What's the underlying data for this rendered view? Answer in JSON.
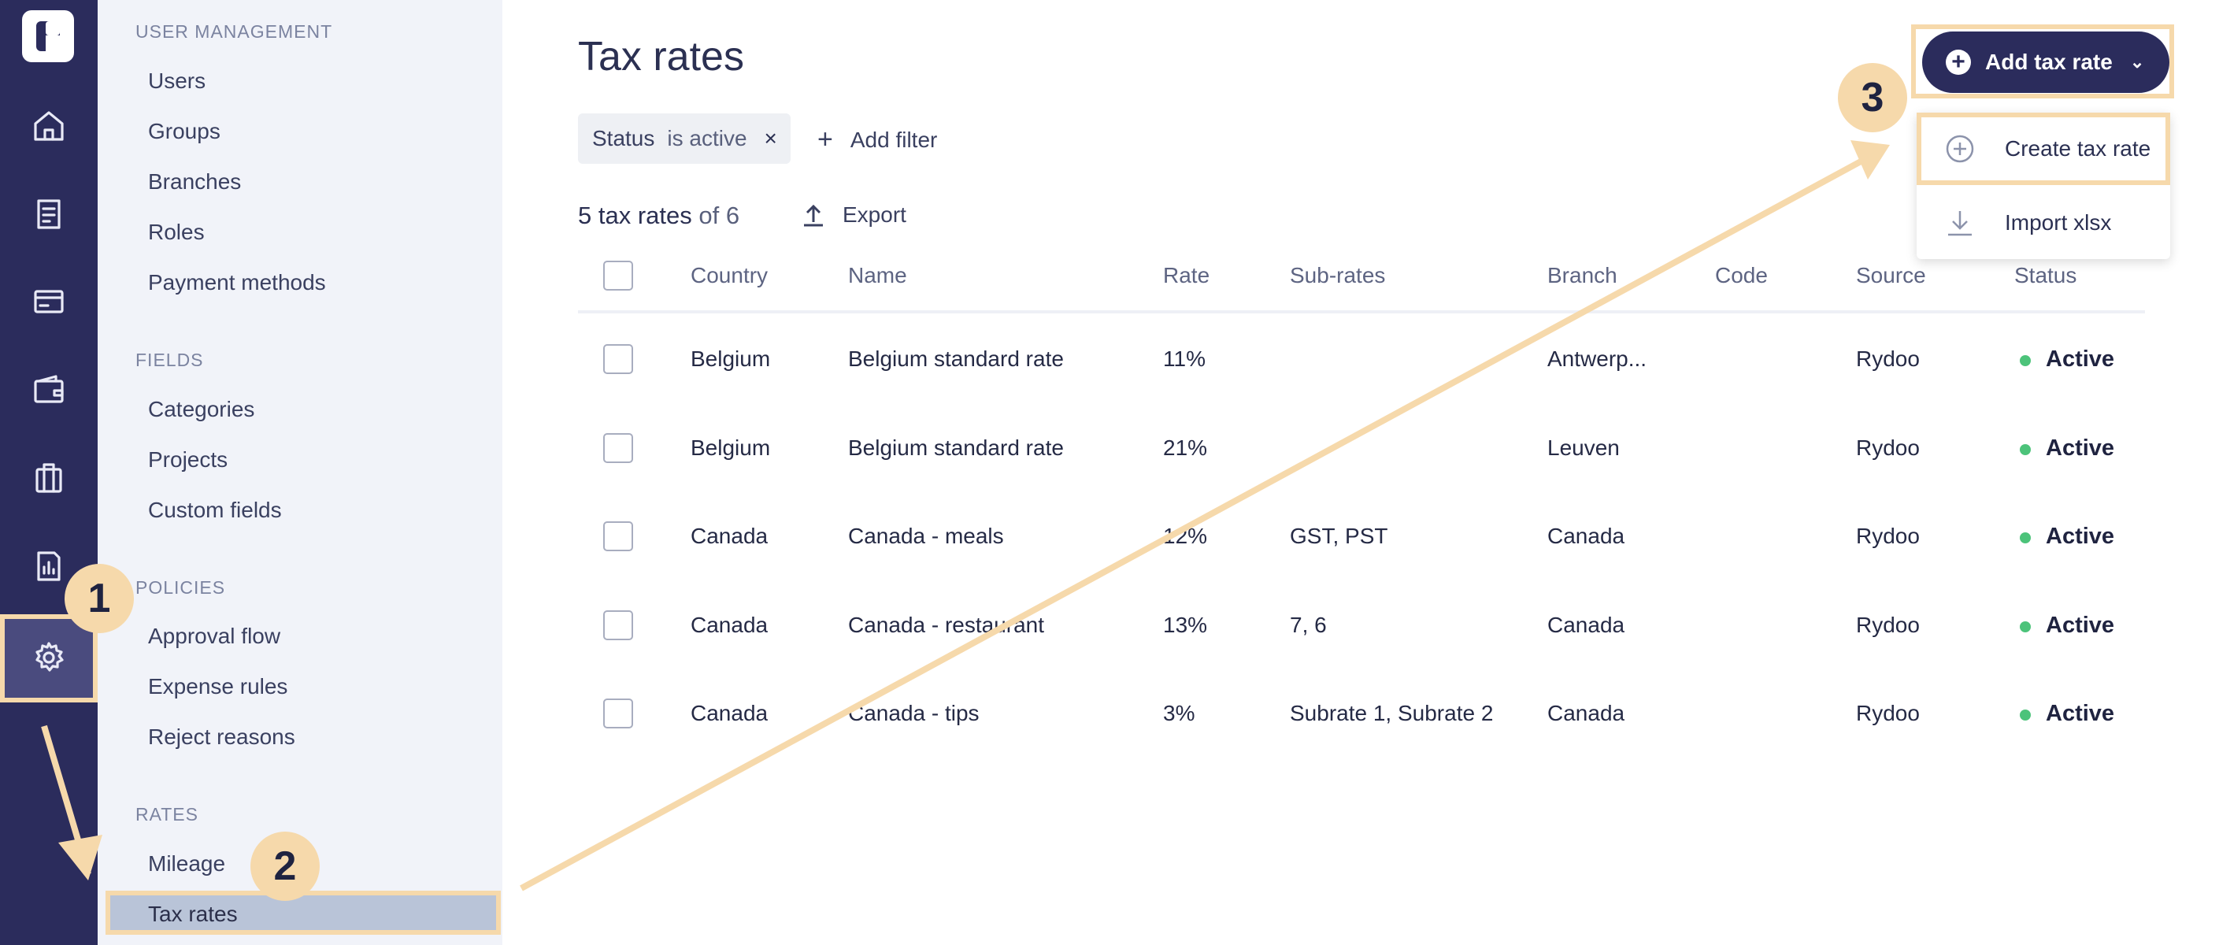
{
  "sidebar": {
    "sections": {
      "user_management": "USER MANAGEMENT",
      "fields": "FIELDS",
      "policies": "POLICIES",
      "rates": "RATES"
    },
    "items": {
      "users": "Users",
      "groups": "Groups",
      "branches": "Branches",
      "roles": "Roles",
      "payment_methods": "Payment methods",
      "categories": "Categories",
      "projects": "Projects",
      "custom_fields": "Custom fields",
      "approval_flow": "Approval flow",
      "expense_rules": "Expense rules",
      "reject_reasons": "Reject reasons",
      "mileage": "Mileage",
      "tax_rates": "Tax rates"
    }
  },
  "header": {
    "title": "Tax rates",
    "add_button": "Add tax rate"
  },
  "filter": {
    "key": "Status",
    "value": "is active",
    "remove": "×",
    "add_filter": "Add filter"
  },
  "summary": {
    "count": "5 tax rates",
    "of": "of 6",
    "export": "Export"
  },
  "table": {
    "columns": [
      "Country",
      "Name",
      "Rate",
      "Sub-rates",
      "Branch",
      "Code",
      "Source",
      "Status"
    ],
    "rows": [
      {
        "country": "Belgium",
        "name": "Belgium standard rate",
        "rate": "11%",
        "subrates": "",
        "branch": "Antwerp...",
        "code": "",
        "source": "Rydoo",
        "status": "Active"
      },
      {
        "country": "Belgium",
        "name": "Belgium standard rate",
        "rate": "21%",
        "subrates": "",
        "branch": "Leuven",
        "code": "",
        "source": "Rydoo",
        "status": "Active"
      },
      {
        "country": "Canada",
        "name": "Canada - meals",
        "rate": "12%",
        "subrates": "GST, PST",
        "branch": "Canada",
        "code": "",
        "source": "Rydoo",
        "status": "Active"
      },
      {
        "country": "Canada",
        "name": "Canada - restaurant",
        "rate": "13%",
        "subrates": "7, 6",
        "branch": "Canada",
        "code": "",
        "source": "Rydoo",
        "status": "Active"
      },
      {
        "country": "Canada",
        "name": "Canada - tips",
        "rate": "3%",
        "subrates": "Subrate 1, Subrate 2",
        "branch": "Canada",
        "code": "",
        "source": "Rydoo",
        "status": "Active"
      }
    ]
  },
  "dropdown": {
    "create": "Create tax rate",
    "import": "Import xlsx"
  },
  "steps": [
    "1",
    "2",
    "3"
  ],
  "colors": {
    "rail": "#2b2c5c",
    "highlight": "#f6d9ab",
    "active_status": "#4cc37a"
  }
}
